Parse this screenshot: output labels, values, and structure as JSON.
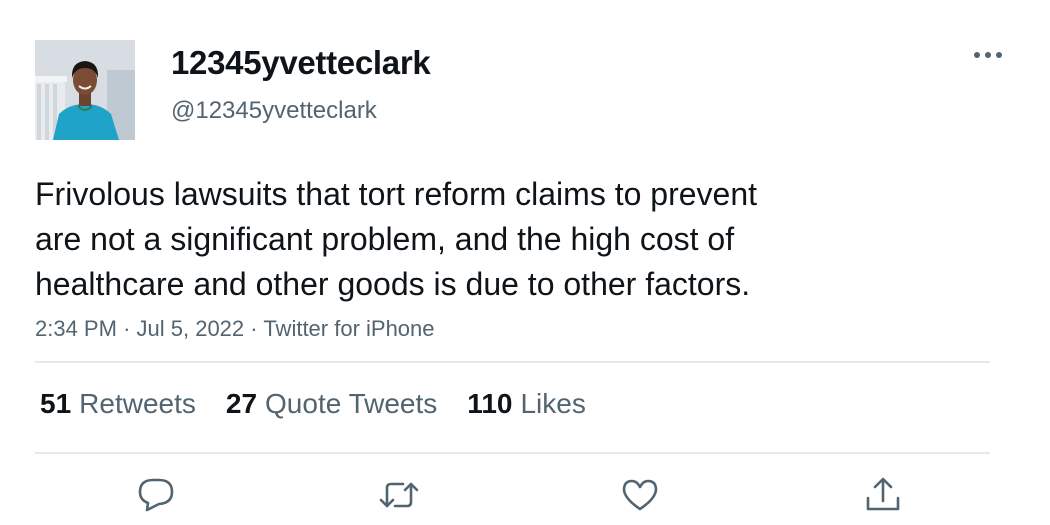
{
  "author": {
    "display_name": "12345yvetteclark",
    "handle": "@12345yvetteclark"
  },
  "tweet": {
    "lines": [
      "Frivolous lawsuits that tort reform claims to prevent",
      "are not a significant problem, and the high cost of",
      "healthcare and other goods is due to other factors."
    ],
    "time": "2:34 PM",
    "date": "Jul 5, 2022",
    "source": "Twitter for iPhone",
    "separator": "·"
  },
  "stats": {
    "retweets_count": "51",
    "retweets_label": "Retweets",
    "quotes_count": "27",
    "quotes_label": "Quote Tweets",
    "likes_count": "110",
    "likes_label": "Likes"
  },
  "icons": {
    "more": "more-horizontal-icon",
    "reply": "reply-bubble-icon",
    "retweet": "retweet-arrows-icon",
    "like": "heart-icon",
    "share": "share-upload-icon"
  },
  "colors": {
    "text_primary": "#0f1419",
    "text_secondary": "#536471",
    "divider": "#e6e9eb",
    "avatar_jacket": "#1fa3c9"
  }
}
